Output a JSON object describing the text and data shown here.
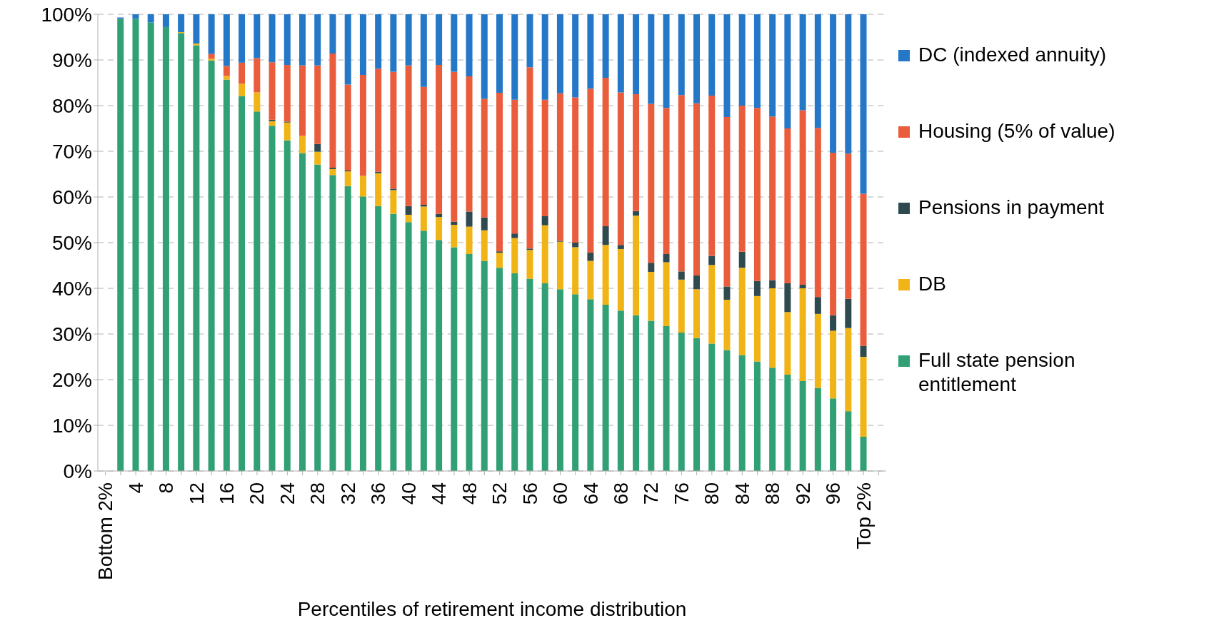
{
  "chart_data": {
    "type": "bar",
    "stacked": true,
    "xlabel": "Percentiles of retirement income distribution",
    "categories": [
      "Bottom 2%",
      null,
      "4",
      null,
      "8",
      null,
      "12",
      null,
      "16",
      null,
      "20",
      null,
      "24",
      null,
      "28",
      null,
      "32",
      null,
      "36",
      null,
      "40",
      null,
      "44",
      null,
      "48",
      null,
      "52",
      null,
      "56",
      null,
      "60",
      null,
      "64",
      null,
      "68",
      null,
      "72",
      null,
      "76",
      null,
      "80",
      null,
      "84",
      null,
      "88",
      null,
      "92",
      null,
      "96",
      null,
      "Top 2%",
      null
    ],
    "series": [
      {
        "name": "Full state pension entitlement",
        "color": "#31a074",
        "values": [
          null,
          99.0,
          99.0,
          98.2,
          97.2,
          95.9,
          93.2,
          89.9,
          85.7,
          82.1,
          78.7,
          75.6,
          72.4,
          69.6,
          67.1,
          64.8,
          62.4,
          60.1,
          58.0,
          56.3,
          54.5,
          52.6,
          50.6,
          49.0,
          47.5,
          46.0,
          44.5,
          43.3,
          42.1,
          41.1,
          39.8,
          38.7,
          37.6,
          36.4,
          35.1,
          34.1,
          32.9,
          31.7,
          30.3,
          29.1,
          27.9,
          26.5,
          25.4,
          24.0,
          22.6,
          21.1,
          19.7,
          18.2,
          15.9,
          13.1,
          7.5,
          null
        ]
      },
      {
        "name": "DB",
        "color": "#f1b416",
        "values": [
          null,
          0,
          0,
          0,
          0,
          0.2,
          0.4,
          0.4,
          0.8,
          2.7,
          4.2,
          1.0,
          3.9,
          3.8,
          2.8,
          1.3,
          3.2,
          4.5,
          7.2,
          5.2,
          1.6,
          5.3,
          5.0,
          4.9,
          6.0,
          6.7,
          3.3,
          7.7,
          6.3,
          12.7,
          10.4,
          10.3,
          8.4,
          13.1,
          13.5,
          21.8,
          10.7,
          14.0,
          11.6,
          10.7,
          17.2,
          11.0,
          19.1,
          14.3,
          17.4,
          13.7,
          20.3,
          16.2,
          14.8,
          18.2,
          17.5,
          null
        ]
      },
      {
        "name": "Pensions in payment",
        "color": "#2f4a4f",
        "values": [
          null,
          0,
          0,
          0,
          0,
          0,
          0,
          0,
          0,
          0,
          0,
          0.3,
          0.2,
          0,
          1.7,
          0.3,
          0.2,
          0,
          0.3,
          0.3,
          1.9,
          0.4,
          0.7,
          0.7,
          3.3,
          2.8,
          0.3,
          1.0,
          0.3,
          2.0,
          0.2,
          1.0,
          1.8,
          4.1,
          0.9,
          1.0,
          2.0,
          1.8,
          1.8,
          3.0,
          2.0,
          2.9,
          3.5,
          3.3,
          1.8,
          6.3,
          0.8,
          3.7,
          3.4,
          6.4,
          2.4,
          null
        ]
      },
      {
        "name": "Housing (5% of value)",
        "color": "#e95d3d",
        "values": [
          null,
          0,
          0,
          0,
          0,
          0,
          0,
          1.0,
          2.2,
          4.6,
          7.5,
          12.6,
          12.4,
          15.4,
          17.2,
          25.0,
          18.8,
          22.1,
          22.6,
          25.6,
          30.8,
          25.8,
          32.6,
          32.8,
          29.6,
          26.0,
          34.7,
          29.3,
          39.7,
          25.5,
          32.3,
          31.8,
          35.9,
          32.5,
          33.4,
          25.6,
          34.8,
          32.0,
          38.6,
          37.7,
          35.1,
          37.1,
          32.0,
          37.9,
          35.8,
          33.9,
          38.2,
          37.0,
          35.6,
          31.8,
          33.3,
          null
        ]
      },
      {
        "name": "DC (indexed annuity)",
        "color": "#2577c7",
        "values": [
          null,
          0.3,
          1.0,
          1.8,
          2.8,
          3.9,
          6.4,
          8.7,
          11.3,
          10.6,
          9.6,
          10.5,
          11.1,
          11.2,
          11.2,
          8.6,
          15.4,
          13.3,
          11.9,
          12.6,
          11.2,
          15.9,
          11.1,
          12.6,
          13.6,
          18.5,
          17.2,
          18.7,
          11.6,
          18.7,
          17.3,
          18.2,
          16.3,
          13.9,
          17.1,
          17.5,
          19.6,
          20.5,
          17.7,
          19.5,
          17.8,
          22.5,
          20.0,
          20.5,
          22.4,
          25.0,
          21.0,
          24.9,
          30.3,
          30.5,
          39.3,
          null
        ]
      }
    ],
    "ylim": [
      0,
      100
    ],
    "yticks": [
      {
        "value": 0,
        "label": "0%"
      },
      {
        "value": 10,
        "label": "10%"
      },
      {
        "value": 20,
        "label": "20%"
      },
      {
        "value": 30,
        "label": "30%"
      },
      {
        "value": 40,
        "label": "40%"
      },
      {
        "value": 50,
        "label": "50%"
      },
      {
        "value": 60,
        "label": "60%"
      },
      {
        "value": 70,
        "label": "70%"
      },
      {
        "value": 80,
        "label": "80%"
      },
      {
        "value": 90,
        "label": "90%"
      },
      {
        "value": 100,
        "label": "100%"
      }
    ],
    "grid": "y",
    "legend": "right"
  }
}
